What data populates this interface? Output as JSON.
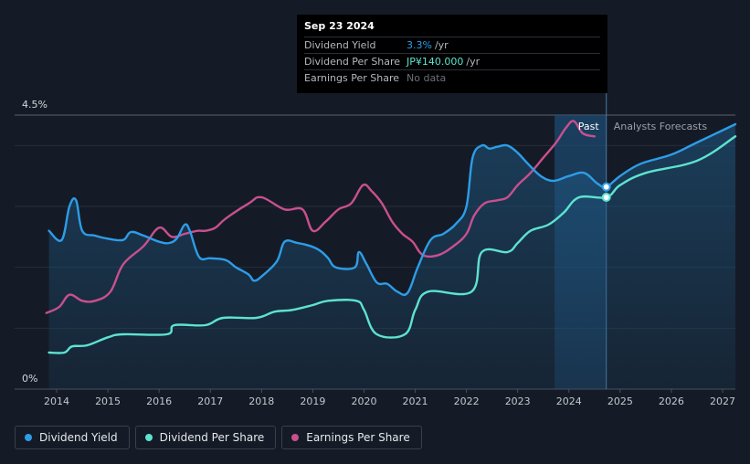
{
  "tooltip": {
    "date": "Sep 23 2024",
    "rows": [
      {
        "label": "Dividend Yield",
        "value": "3.3%",
        "unit": "/yr"
      },
      {
        "label": "Dividend Per Share",
        "value": "JP¥140.000",
        "unit": "/yr"
      },
      {
        "label": "Earnings Per Share",
        "value": "No data",
        "unit": ""
      }
    ]
  },
  "legend": {
    "dividend_yield": "Dividend Yield",
    "dividend_per_share": "Dividend Per Share",
    "earnings_per_share": "Earnings Per Share"
  },
  "colors": {
    "dividend_yield": "#2d9de8",
    "dividend_per_share": "#5de3d0",
    "earnings_per_share": "#c8508e",
    "background": "#151b26"
  },
  "chart_data": {
    "type": "line",
    "y_axis_label_top": "4.5%",
    "y_axis_label_bottom": "0%",
    "ylim": [
      0,
      4.5
    ],
    "xlim": [
      2013.6,
      2027.25
    ],
    "x_ticks": [
      "2014",
      "2015",
      "2016",
      "2017",
      "2018",
      "2019",
      "2020",
      "2021",
      "2022",
      "2023",
      "2024",
      "2025",
      "2026",
      "2027"
    ],
    "past_label": "Past",
    "forecast_label": "Analysts Forecasts",
    "past_shade_range": [
      2023.72,
      2024.73
    ],
    "divider_x": 2024.73,
    "marker_x": 2024.73,
    "series": [
      {
        "name": "Dividend Yield",
        "key": "dividend_yield",
        "points": [
          [
            2013.85,
            2.6
          ],
          [
            2014.1,
            2.45
          ],
          [
            2014.25,
            3.0
          ],
          [
            2014.38,
            3.1
          ],
          [
            2014.5,
            2.6
          ],
          [
            2014.75,
            2.52
          ],
          [
            2015.0,
            2.47
          ],
          [
            2015.3,
            2.45
          ],
          [
            2015.45,
            2.58
          ],
          [
            2015.7,
            2.52
          ],
          [
            2016.0,
            2.42
          ],
          [
            2016.2,
            2.4
          ],
          [
            2016.35,
            2.48
          ],
          [
            2016.5,
            2.7
          ],
          [
            2016.6,
            2.6
          ],
          [
            2016.78,
            2.17
          ],
          [
            2017.0,
            2.15
          ],
          [
            2017.3,
            2.12
          ],
          [
            2017.5,
            2.0
          ],
          [
            2017.75,
            1.88
          ],
          [
            2017.85,
            1.78
          ],
          [
            2018.0,
            1.85
          ],
          [
            2018.3,
            2.1
          ],
          [
            2018.45,
            2.42
          ],
          [
            2018.7,
            2.4
          ],
          [
            2018.95,
            2.35
          ],
          [
            2019.15,
            2.27
          ],
          [
            2019.3,
            2.15
          ],
          [
            2019.45,
            2.0
          ],
          [
            2019.82,
            2.0
          ],
          [
            2019.9,
            2.25
          ],
          [
            2020.05,
            2.05
          ],
          [
            2020.25,
            1.75
          ],
          [
            2020.45,
            1.73
          ],
          [
            2020.65,
            1.6
          ],
          [
            2020.85,
            1.58
          ],
          [
            2021.05,
            2.0
          ],
          [
            2021.3,
            2.45
          ],
          [
            2021.55,
            2.55
          ],
          [
            2021.8,
            2.72
          ],
          [
            2022.0,
            3.0
          ],
          [
            2022.12,
            3.8
          ],
          [
            2022.3,
            4.0
          ],
          [
            2022.45,
            3.95
          ],
          [
            2022.6,
            3.98
          ],
          [
            2022.8,
            4.0
          ],
          [
            2023.0,
            3.88
          ],
          [
            2023.2,
            3.7
          ],
          [
            2023.45,
            3.5
          ],
          [
            2023.7,
            3.42
          ],
          [
            2024.0,
            3.5
          ],
          [
            2024.3,
            3.55
          ],
          [
            2024.55,
            3.38
          ],
          [
            2024.73,
            3.32
          ],
          [
            2025.0,
            3.5
          ],
          [
            2025.4,
            3.7
          ],
          [
            2026.0,
            3.85
          ],
          [
            2026.5,
            4.05
          ],
          [
            2027.25,
            4.35
          ]
        ]
      },
      {
        "name": "Dividend Per Share",
        "key": "dividend_per_share",
        "points": [
          [
            2013.85,
            0.6
          ],
          [
            2014.15,
            0.6
          ],
          [
            2014.3,
            0.7
          ],
          [
            2014.6,
            0.72
          ],
          [
            2015.0,
            0.85
          ],
          [
            2015.3,
            0.9
          ],
          [
            2016.15,
            0.9
          ],
          [
            2016.3,
            1.05
          ],
          [
            2016.9,
            1.05
          ],
          [
            2017.25,
            1.17
          ],
          [
            2017.9,
            1.17
          ],
          [
            2018.25,
            1.27
          ],
          [
            2018.6,
            1.3
          ],
          [
            2019.0,
            1.38
          ],
          [
            2019.3,
            1.45
          ],
          [
            2019.85,
            1.45
          ],
          [
            2020.0,
            1.3
          ],
          [
            2020.25,
            0.9
          ],
          [
            2020.8,
            0.9
          ],
          [
            2021.0,
            1.3
          ],
          [
            2021.25,
            1.6
          ],
          [
            2022.1,
            1.6
          ],
          [
            2022.3,
            2.25
          ],
          [
            2022.8,
            2.25
          ],
          [
            2023.0,
            2.4
          ],
          [
            2023.25,
            2.6
          ],
          [
            2023.6,
            2.7
          ],
          [
            2023.9,
            2.9
          ],
          [
            2024.2,
            3.15
          ],
          [
            2024.73,
            3.15
          ],
          [
            2025.0,
            3.35
          ],
          [
            2025.5,
            3.55
          ],
          [
            2026.5,
            3.75
          ],
          [
            2027.25,
            4.15
          ]
        ]
      },
      {
        "name": "Earnings Per Share",
        "key": "earnings_per_share",
        "points": [
          [
            2013.8,
            1.25
          ],
          [
            2014.05,
            1.35
          ],
          [
            2014.25,
            1.55
          ],
          [
            2014.5,
            1.45
          ],
          [
            2014.75,
            1.45
          ],
          [
            2015.05,
            1.6
          ],
          [
            2015.3,
            2.05
          ],
          [
            2015.7,
            2.35
          ],
          [
            2016.0,
            2.65
          ],
          [
            2016.25,
            2.5
          ],
          [
            2016.5,
            2.55
          ],
          [
            2016.75,
            2.6
          ],
          [
            2016.9,
            2.6
          ],
          [
            2017.1,
            2.65
          ],
          [
            2017.3,
            2.8
          ],
          [
            2017.75,
            3.05
          ],
          [
            2018.0,
            3.15
          ],
          [
            2018.45,
            2.95
          ],
          [
            2018.8,
            2.95
          ],
          [
            2019.0,
            2.6
          ],
          [
            2019.25,
            2.75
          ],
          [
            2019.5,
            2.95
          ],
          [
            2019.75,
            3.05
          ],
          [
            2019.98,
            3.35
          ],
          [
            2020.15,
            3.25
          ],
          [
            2020.35,
            3.05
          ],
          [
            2020.55,
            2.75
          ],
          [
            2020.75,
            2.55
          ],
          [
            2020.95,
            2.42
          ],
          [
            2021.15,
            2.2
          ],
          [
            2021.45,
            2.2
          ],
          [
            2021.75,
            2.35
          ],
          [
            2022.0,
            2.55
          ],
          [
            2022.15,
            2.85
          ],
          [
            2022.35,
            3.05
          ],
          [
            2022.6,
            3.1
          ],
          [
            2022.8,
            3.15
          ],
          [
            2023.0,
            3.35
          ],
          [
            2023.25,
            3.55
          ],
          [
            2023.5,
            3.8
          ],
          [
            2023.75,
            4.05
          ],
          [
            2023.95,
            4.3
          ],
          [
            2024.1,
            4.4
          ],
          [
            2024.27,
            4.2
          ],
          [
            2024.5,
            4.15
          ]
        ]
      }
    ]
  }
}
